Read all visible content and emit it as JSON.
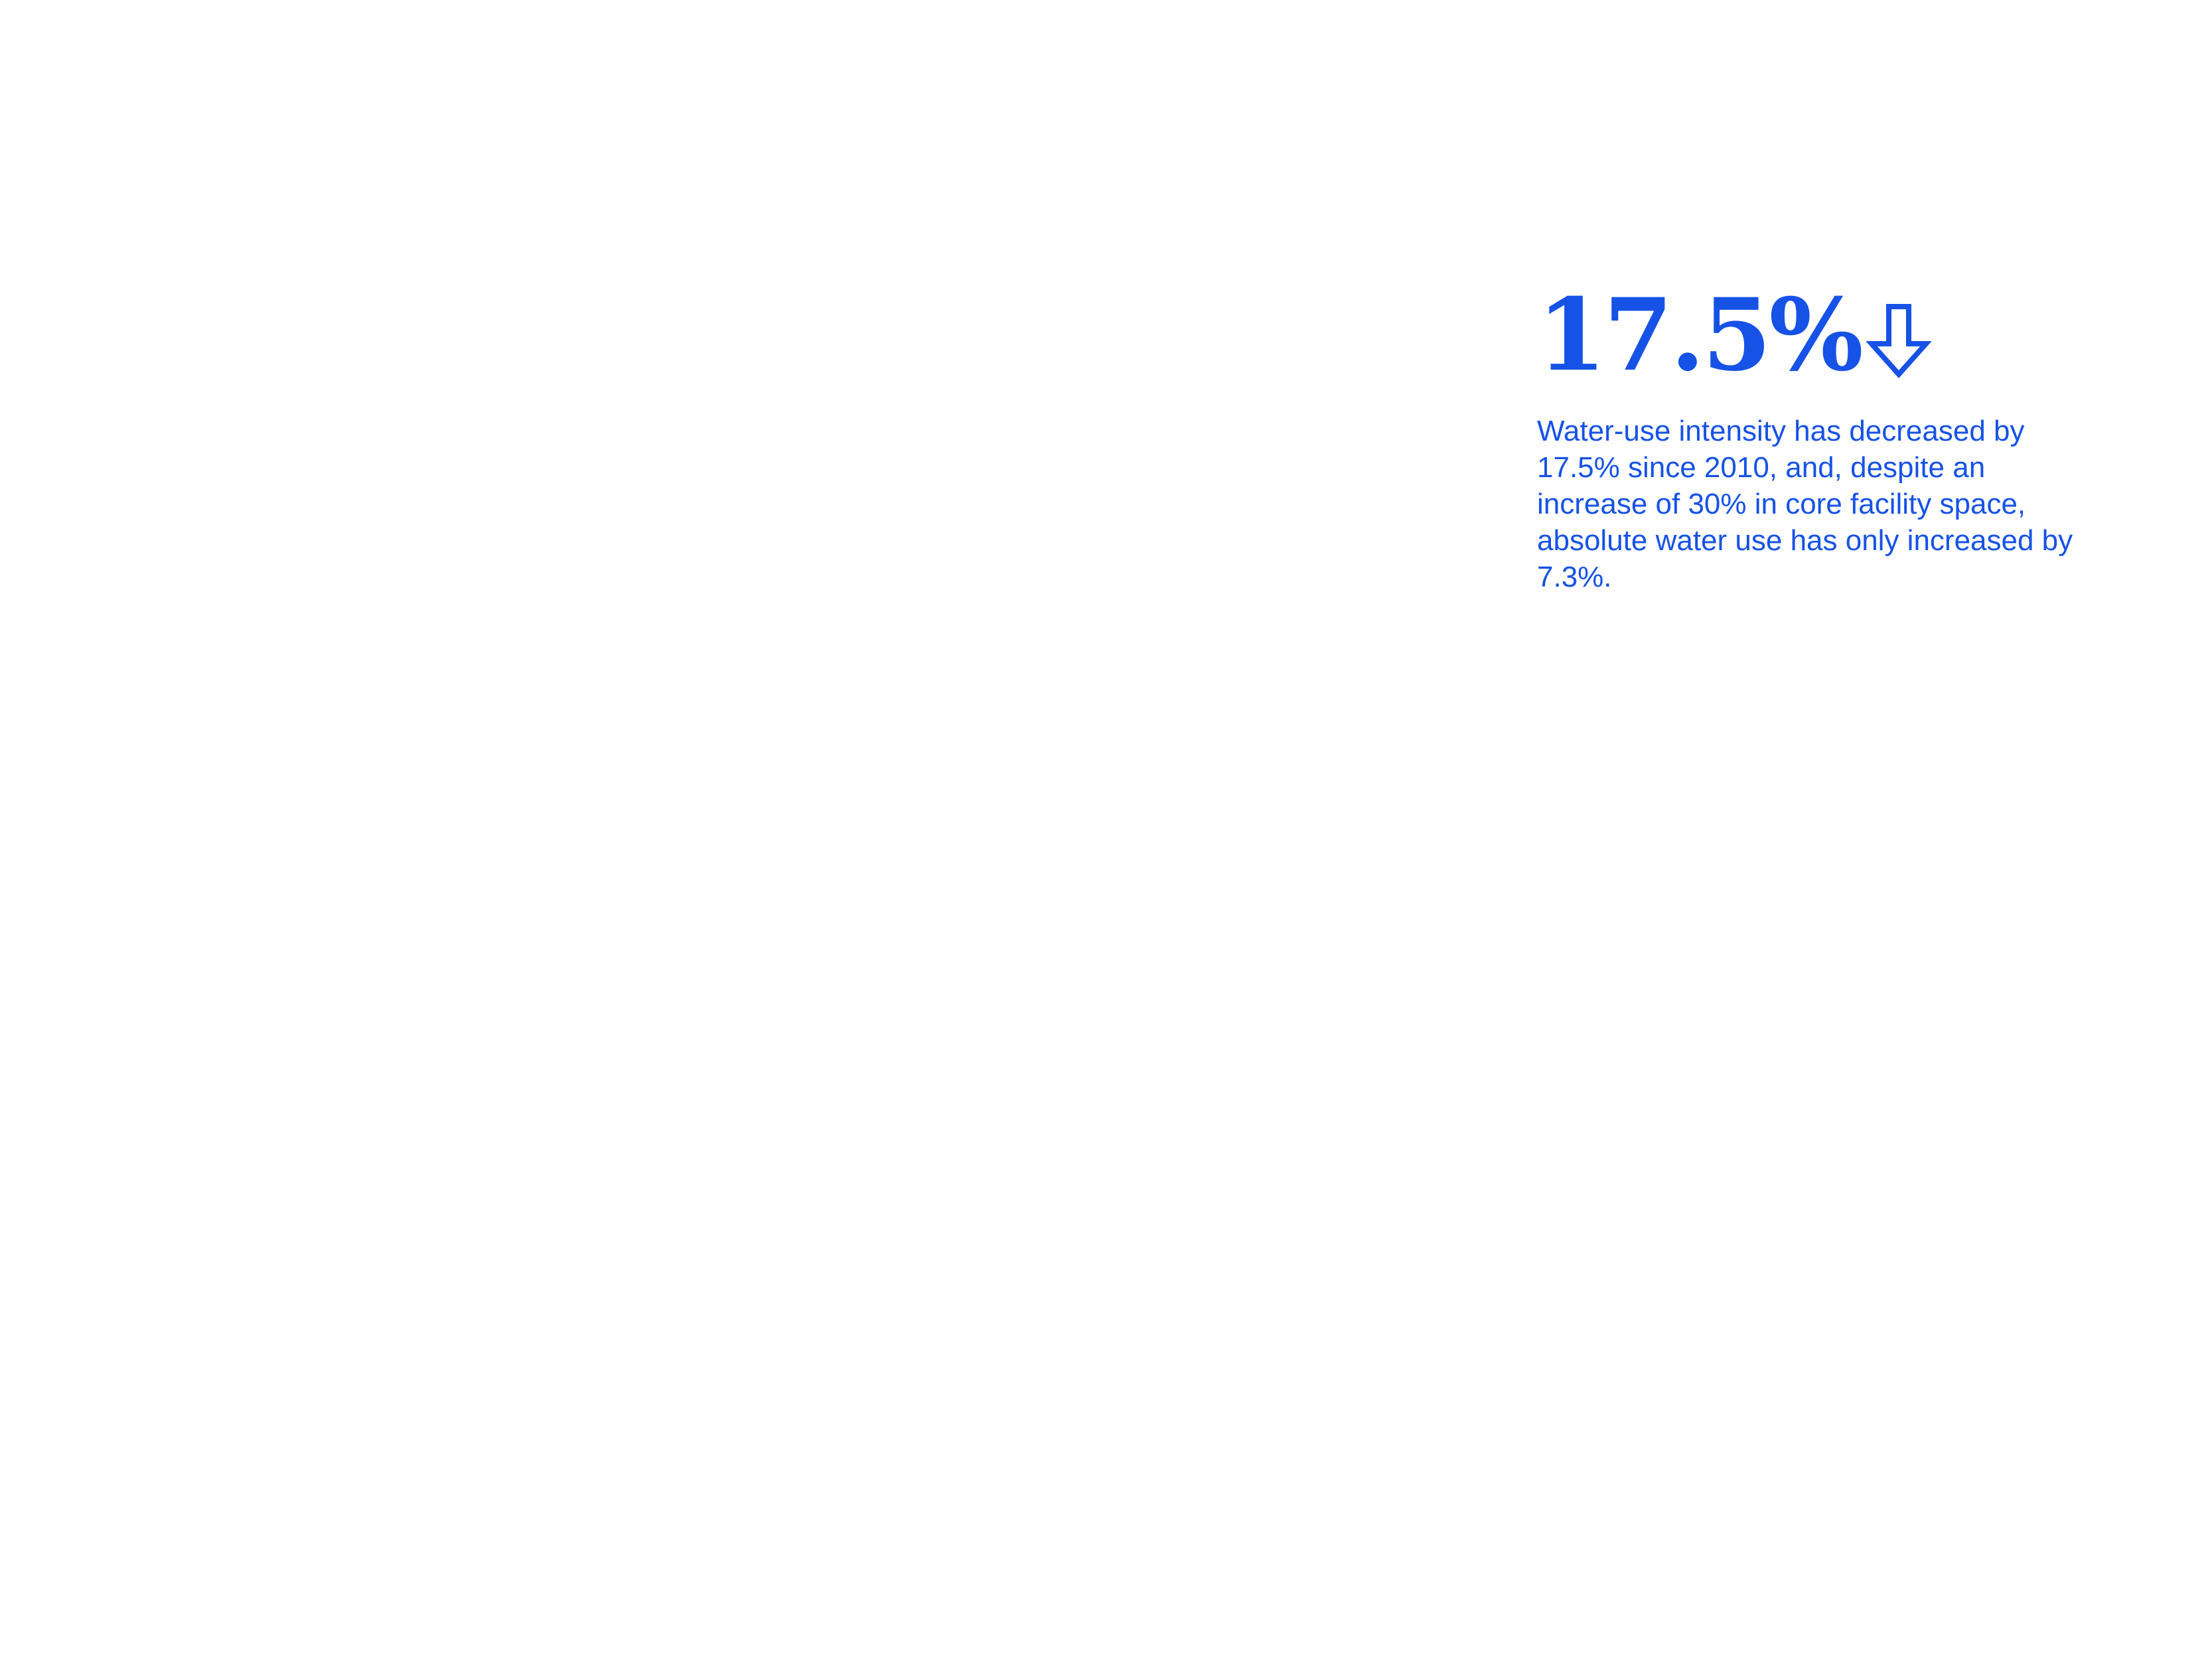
{
  "stat": {
    "value": "17.5%",
    "trend_icon": "arrow-down-outline-icon",
    "description": "Water-use intensity has decreased by 17.5% since 2010, and, despite an increase of 30% in core facility space, absolute water use has only increased by 7.3%."
  },
  "colors": {
    "accent": "#1652e6",
    "background": "#ffffff"
  }
}
